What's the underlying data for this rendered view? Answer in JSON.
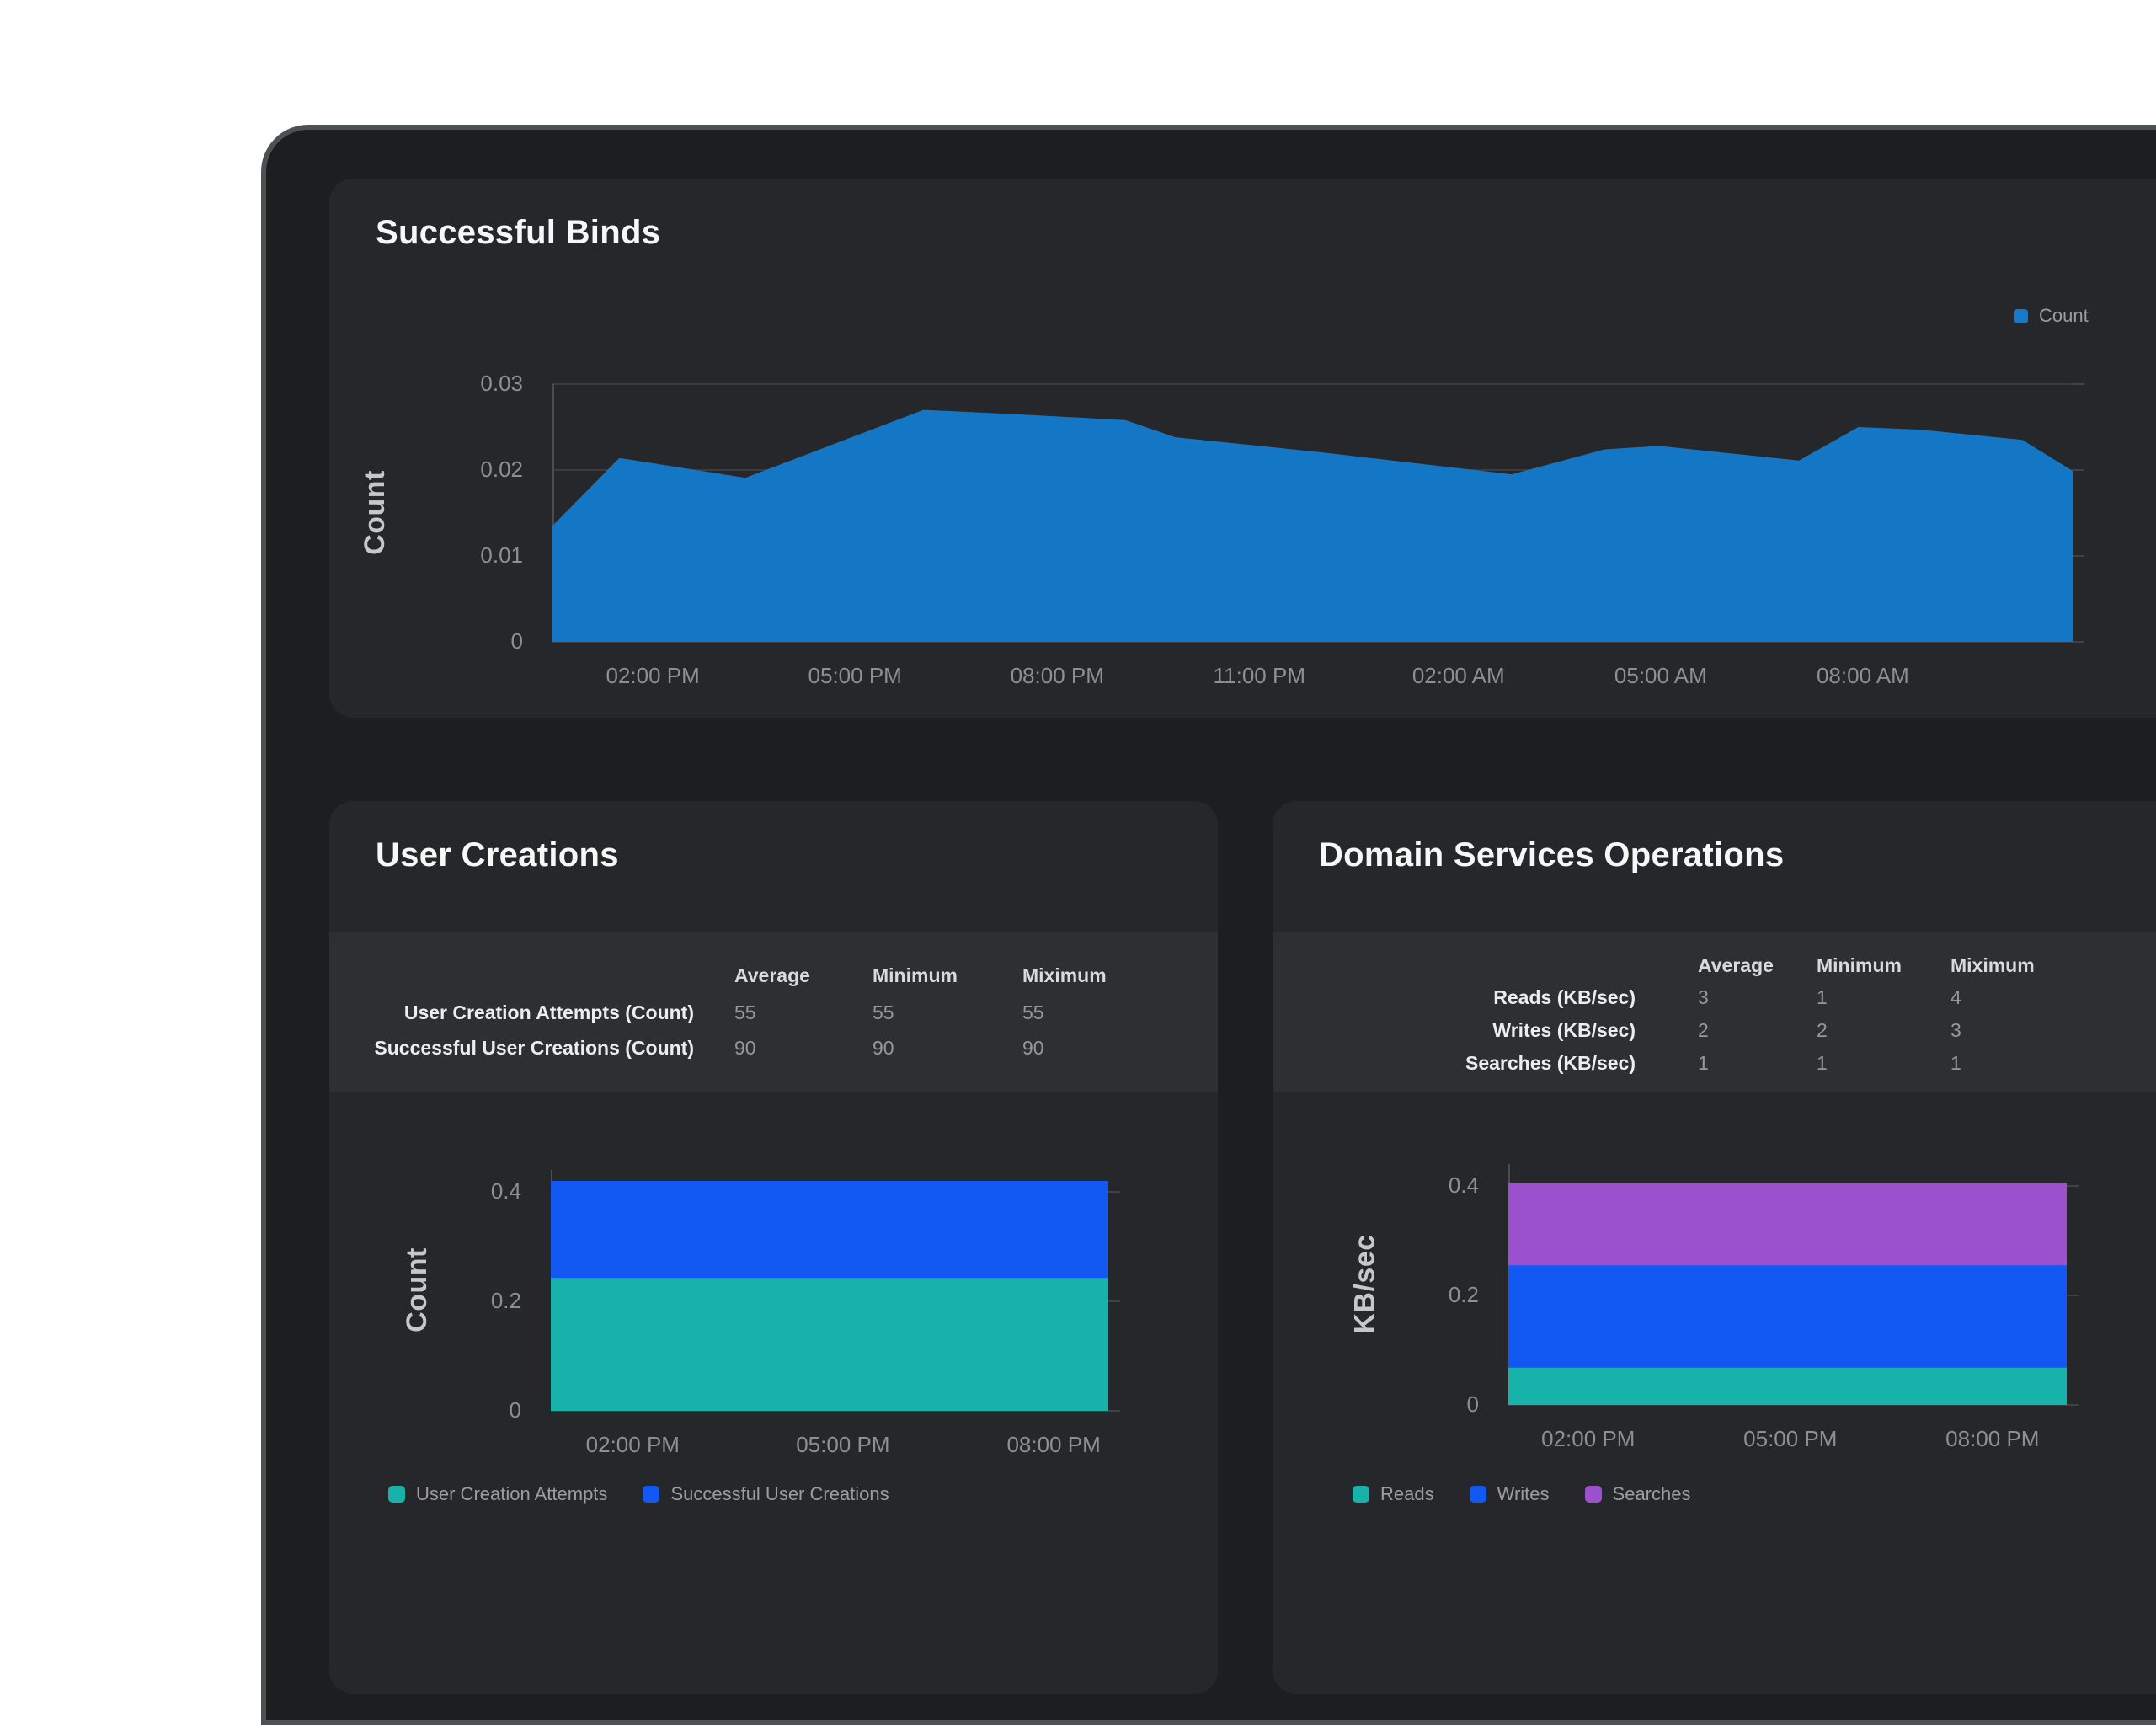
{
  "cards": {
    "binds": {
      "title": "Successful Binds",
      "legend": [
        {
          "label": "Count",
          "color": "#1679C9"
        }
      ]
    },
    "user_creations": {
      "title": "User Creations",
      "table": {
        "headers": [
          "Average",
          "Minimum",
          "Miximum"
        ],
        "rows": [
          {
            "label": "User Creation Attempts (Count)",
            "values": [
              "55",
              "55",
              "55"
            ]
          },
          {
            "label": "Successful User Creations (Count)",
            "values": [
              "90",
              "90",
              "90"
            ]
          }
        ]
      },
      "legend": [
        {
          "label": "User Creation Attempts",
          "color": "#17B2A9"
        },
        {
          "label": "Successful User Creations",
          "color": "#1159F2"
        }
      ]
    },
    "domain_ops": {
      "title": "Domain Services Operations",
      "table": {
        "headers": [
          "Average",
          "Minimum",
          "Miximum"
        ],
        "rows": [
          {
            "label": "Reads (KB/sec)",
            "values": [
              "3",
              "1",
              "4"
            ]
          },
          {
            "label": "Writes (KB/sec)",
            "values": [
              "2",
              "2",
              "3"
            ]
          },
          {
            "label": "Searches (KB/sec)",
            "values": [
              "1",
              "1",
              "1"
            ]
          }
        ]
      },
      "legend": [
        {
          "label": "Reads",
          "color": "#17B2A9"
        },
        {
          "label": "Writes",
          "color": "#1159F2"
        },
        {
          "label": "Searches",
          "color": "#9B51CE"
        }
      ]
    }
  },
  "chart_data": [
    {
      "id": "binds",
      "type": "area",
      "title": "Successful Binds",
      "xlabel": "",
      "ylabel": "Count",
      "ylim": [
        0,
        0.03
      ],
      "grid": true,
      "legend_position": "top-right",
      "yticks": [
        {
          "label": "0",
          "v": 0
        },
        {
          "label": "0.01",
          "v": 0.01
        },
        {
          "label": "0.02",
          "v": 0.02
        },
        {
          "label": "0.03",
          "v": 0.03
        }
      ],
      "xticks": [
        {
          "label": "02:00 PM",
          "f": 0.066
        },
        {
          "label": "05:00 PM",
          "f": 0.199
        },
        {
          "label": "08:00 PM",
          "f": 0.332
        },
        {
          "label": "11:00 PM",
          "f": 0.465
        },
        {
          "label": "02:00 AM",
          "f": 0.596
        },
        {
          "label": "05:00 AM",
          "f": 0.729
        },
        {
          "label": "08:00 AM",
          "f": 0.862
        }
      ],
      "series": [
        {
          "name": "Count",
          "color": "#1377C5",
          "stack": "none",
          "y_top": [
            {
              "x": 0.0,
              "y": 0.0135
            },
            {
              "x": 0.044,
              "y": 0.0214
            },
            {
              "x": 0.127,
              "y": 0.0191
            },
            {
              "x": 0.244,
              "y": 0.027
            },
            {
              "x": 0.305,
              "y": 0.0265
            },
            {
              "x": 0.377,
              "y": 0.0258
            },
            {
              "x": 0.41,
              "y": 0.0238
            },
            {
              "x": 0.504,
              "y": 0.0221
            },
            {
              "x": 0.631,
              "y": 0.0195
            },
            {
              "x": 0.692,
              "y": 0.0224
            },
            {
              "x": 0.728,
              "y": 0.0228
            },
            {
              "x": 0.82,
              "y": 0.0211
            },
            {
              "x": 0.859,
              "y": 0.025
            },
            {
              "x": 0.9,
              "y": 0.0247
            },
            {
              "x": 0.967,
              "y": 0.0235
            },
            {
              "x": 1.0,
              "y": 0.0199
            }
          ]
        }
      ]
    },
    {
      "id": "user",
      "type": "area",
      "title": "User Creations",
      "xlabel": "",
      "ylabel": "Count",
      "ylim": [
        0,
        0.44
      ],
      "grid": true,
      "legend_position": "bottom-left",
      "yticks": [
        {
          "label": "0",
          "v": 0
        },
        {
          "label": "0.2",
          "v": 0.2
        },
        {
          "label": "0.4",
          "v": 0.4
        }
      ],
      "xticks": [
        {
          "label": "02:00 PM",
          "f": 0.147
        },
        {
          "label": "05:00 PM",
          "f": 0.524
        },
        {
          "label": "08:00 PM",
          "f": 0.902
        }
      ],
      "series": [
        {
          "name": "User Creation Attempts",
          "color": "#17B2A9",
          "stack": "cumulative-top",
          "y_top": [
            {
              "x": 0,
              "y": 0.243
            },
            {
              "x": 1,
              "y": 0.243
            }
          ]
        },
        {
          "name": "Successful User Creations",
          "color": "#1159F2",
          "stack": "cumulative-top",
          "y_top": [
            {
              "x": 0,
              "y": 0.42
            },
            {
              "x": 1,
              "y": 0.42
            }
          ]
        }
      ]
    },
    {
      "id": "domain",
      "type": "area",
      "title": "Domain Services Operations",
      "xlabel": "",
      "ylabel": "KB/sec",
      "ylim": [
        0,
        0.44
      ],
      "grid": true,
      "legend_position": "bottom-left",
      "yticks": [
        {
          "label": "0",
          "v": 0
        },
        {
          "label": "0.2",
          "v": 0.2
        },
        {
          "label": "0.4",
          "v": 0.4
        }
      ],
      "xticks": [
        {
          "label": "02:00 PM",
          "f": 0.143
        },
        {
          "label": "05:00 PM",
          "f": 0.505
        },
        {
          "label": "08:00 PM",
          "f": 0.867
        }
      ],
      "series": [
        {
          "name": "Reads",
          "color": "#17B2A9",
          "stack": "cumulative-top",
          "y_top": [
            {
              "x": 0,
              "y": 0.068
            },
            {
              "x": 1,
              "y": 0.068
            }
          ]
        },
        {
          "name": "Writes",
          "color": "#1159F2",
          "stack": "cumulative-top",
          "y_top": [
            {
              "x": 0,
              "y": 0.255
            },
            {
              "x": 1,
              "y": 0.255
            }
          ]
        },
        {
          "name": "Searches",
          "color": "#9B51CE",
          "stack": "cumulative-top",
          "y_top": [
            {
              "x": 0,
              "y": 0.405
            },
            {
              "x": 1,
              "y": 0.405
            }
          ]
        }
      ]
    }
  ]
}
